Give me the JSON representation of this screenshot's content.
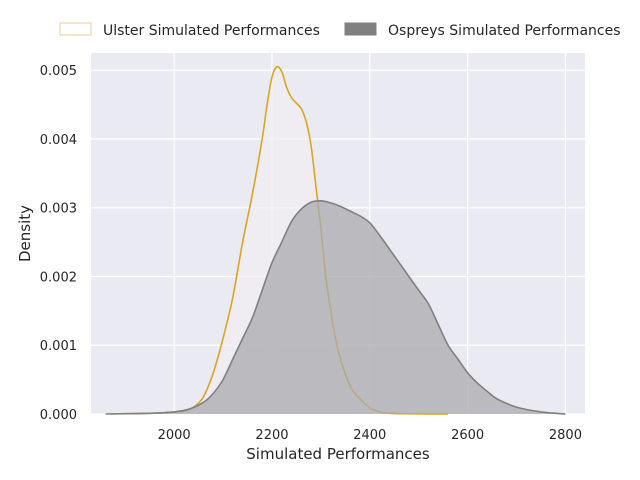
{
  "chart_data": {
    "type": "area",
    "xlabel": "Simulated Performances",
    "ylabel": "Density",
    "xlim": [
      1830,
      2840
    ],
    "ylim": [
      0,
      0.00525
    ],
    "x_ticks": [
      2000,
      2200,
      2400,
      2600,
      2800
    ],
    "x_tick_labels": [
      "2000",
      "2200",
      "2400",
      "2600",
      "2800"
    ],
    "y_ticks": [
      0,
      0.001,
      0.002,
      0.003,
      0.004,
      0.005
    ],
    "y_tick_labels": [
      "0.000",
      "0.001",
      "0.002",
      "0.003",
      "0.004",
      "0.005"
    ],
    "grid": true,
    "legend_position": "top",
    "series": [
      {
        "name": "Ulster Simulated Performances",
        "color": "#DAA520",
        "fill": "#f0eef2",
        "x": [
          1870,
          1950,
          1980,
          2000,
          2020,
          2040,
          2060,
          2080,
          2100,
          2120,
          2140,
          2160,
          2180,
          2190,
          2200,
          2210,
          2220,
          2230,
          2240,
          2250,
          2260,
          2270,
          2280,
          2290,
          2300,
          2310,
          2320,
          2330,
          2340,
          2360,
          2380,
          2400,
          2420,
          2440,
          2460,
          2500,
          2560
        ],
        "y": [
          0,
          1e-05,
          2e-05,
          3e-05,
          4e-05,
          0.0001,
          0.00025,
          0.0006,
          0.0011,
          0.0017,
          0.0025,
          0.0032,
          0.004,
          0.0045,
          0.0049,
          0.00505,
          0.00498,
          0.00475,
          0.0046,
          0.00452,
          0.00444,
          0.00425,
          0.0039,
          0.0033,
          0.0027,
          0.002,
          0.0015,
          0.0011,
          0.0008,
          0.0004,
          0.00022,
          9e-05,
          3e-05,
          1e-05,
          5e-06,
          2e-06,
          0
        ]
      },
      {
        "name": "Ospreys Simulated Performances",
        "color": "#808080",
        "fill": "#a9a9ae",
        "x": [
          1860,
          1900,
          1950,
          2000,
          2030,
          2060,
          2080,
          2100,
          2120,
          2140,
          2160,
          2180,
          2200,
          2220,
          2240,
          2260,
          2280,
          2300,
          2320,
          2340,
          2360,
          2380,
          2400,
          2420,
          2440,
          2460,
          2480,
          2500,
          2520,
          2540,
          2560,
          2580,
          2600,
          2620,
          2640,
          2660,
          2700,
          2750,
          2800
        ],
        "y": [
          0,
          5e-06,
          1e-05,
          3e-05,
          7e-05,
          0.00017,
          0.0003,
          0.0005,
          0.0008,
          0.0011,
          0.0014,
          0.0018,
          0.0022,
          0.0025,
          0.0028,
          0.00298,
          0.00308,
          0.0031,
          0.00307,
          0.00302,
          0.00295,
          0.00288,
          0.00278,
          0.0026,
          0.0024,
          0.0022,
          0.002,
          0.0018,
          0.0016,
          0.0013,
          0.001,
          0.0008,
          0.0006,
          0.00045,
          0.00033,
          0.00022,
          0.0001,
          3e-05,
          0
        ]
      }
    ]
  }
}
